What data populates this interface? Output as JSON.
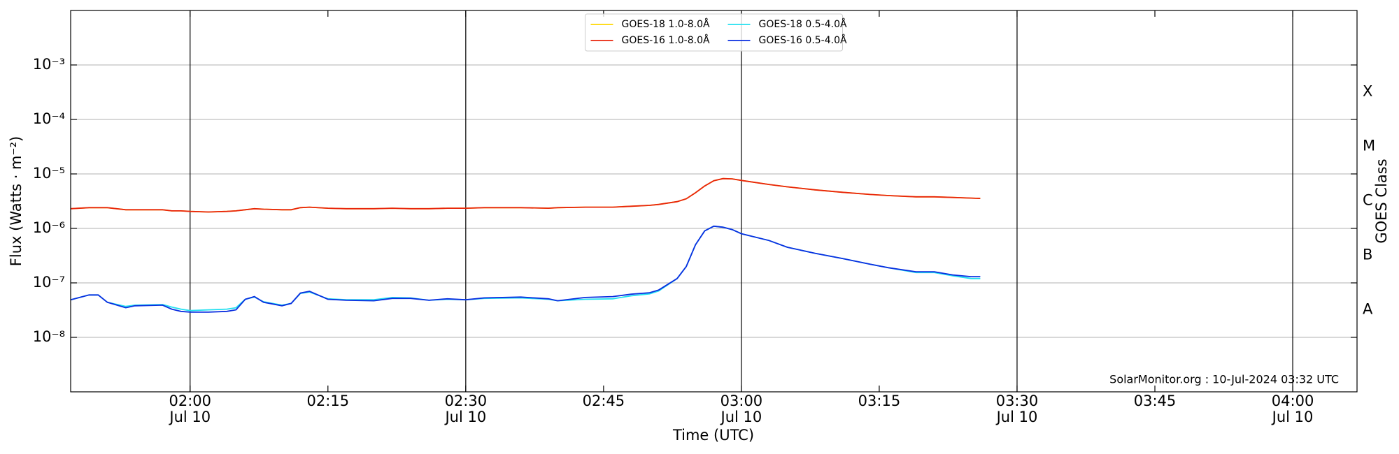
{
  "chart_data": {
    "type": "line",
    "xlabel": "Time (UTC)",
    "ylabel": "Flux (Watts · m⁻²)",
    "y2label": "GOES Class",
    "annotation": "SolarMonitor.org : 10-Jul-2024 03:32 UTC",
    "log": true,
    "grid": true,
    "legend": "upper center",
    "xlim": [
      "01:47",
      "04:07"
    ],
    "xticks": [
      {
        "value": "02:00",
        "label": [
          "02:00",
          "Jul 10"
        ]
      },
      "02:15",
      {
        "value": "02:30",
        "label": [
          "02:30",
          "Jul 10"
        ]
      },
      "02:45",
      {
        "value": "03:00",
        "label": [
          "03:00",
          "Jul 10"
        ]
      },
      "03:15",
      {
        "value": "03:30",
        "label": [
          "03:30",
          "Jul 10"
        ]
      },
      "03:45",
      {
        "value": "04:00",
        "label": [
          "04:00",
          "Jul 10"
        ]
      }
    ],
    "ylim": [
      1e-09,
      0.01
    ],
    "yticks": [
      {
        "value": 1e-08,
        "label": "10⁻⁸"
      },
      {
        "value": 1e-07,
        "label": "10⁻⁷"
      },
      {
        "value": 1e-06,
        "label": "10⁻⁶"
      },
      {
        "value": 1e-05,
        "label": "10⁻⁵"
      },
      {
        "value": 0.0001,
        "label": "10⁻⁴"
      },
      {
        "value": 0.001,
        "label": "10⁻³"
      }
    ],
    "y2lim": [
      1e-09,
      0.01
    ],
    "y2ticks": [
      {
        "value": 3.2e-08,
        "label": "A"
      },
      {
        "value": 3.2e-07,
        "label": "B"
      },
      {
        "value": 3.2e-06,
        "label": "C"
      },
      {
        "value": 3.2e-05,
        "label": "M"
      },
      {
        "value": 0.00032,
        "label": "X"
      }
    ],
    "x": [
      "01:47",
      "01:49",
      "01:50",
      "01:51",
      "01:53",
      "01:54",
      "01:57",
      "01:58",
      "01:59",
      "02:00",
      "02:02",
      "02:04",
      "02:05",
      "02:06",
      "02:07",
      "02:08",
      "02:10",
      "02:11",
      "02:12",
      "02:13",
      "02:15",
      "02:17",
      "02:20",
      "02:22",
      "02:24",
      "02:26",
      "02:28",
      "02:30",
      "02:32",
      "02:36",
      "02:39",
      "02:40",
      "02:43",
      "02:46",
      "02:48",
      "02:50",
      "02:51",
      "02:53",
      "02:54",
      "02:55",
      "02:56",
      "02:57",
      "02:58",
      "02:59",
      "03:00",
      "03:03",
      "03:05",
      "03:08",
      "03:11",
      "03:14",
      "03:16",
      "03:19",
      "03:21",
      "03:23",
      "03:25",
      "03:26"
    ],
    "series": [
      {
        "name": "GOES-18 1.0-8.0Å",
        "color": "#ffd700",
        "values": [
          2.3e-06,
          2.4e-06,
          2.4e-06,
          2.4e-06,
          2.2e-06,
          2.2e-06,
          2.2e-06,
          2.1e-06,
          2.1e-06,
          2.05e-06,
          2e-06,
          2.05e-06,
          2.1e-06,
          2.2e-06,
          2.3e-06,
          2.25e-06,
          2.2e-06,
          2.2e-06,
          2.4e-06,
          2.45e-06,
          2.35e-06,
          2.3e-06,
          2.3e-06,
          2.35e-06,
          2.3e-06,
          2.3e-06,
          2.35e-06,
          2.35e-06,
          2.4e-06,
          2.4e-06,
          2.35e-06,
          2.4e-06,
          2.45e-06,
          2.45e-06,
          2.55e-06,
          2.65e-06,
          2.75e-06,
          3.1e-06,
          3.5e-06,
          4.5e-06,
          6e-06,
          7.5e-06,
          8.2e-06,
          8.1e-06,
          7.6e-06,
          6.4e-06,
          5.8e-06,
          5.1e-06,
          4.6e-06,
          4.2e-06,
          4e-06,
          3.8e-06,
          3.8e-06,
          3.7e-06,
          3.6e-06,
          3.55e-06
        ]
      },
      {
        "name": "GOES-16 1.0-8.0Å",
        "color": "#e8240c",
        "values": [
          2.3e-06,
          2.4e-06,
          2.4e-06,
          2.4e-06,
          2.2e-06,
          2.2e-06,
          2.2e-06,
          2.1e-06,
          2.1e-06,
          2.05e-06,
          2e-06,
          2.05e-06,
          2.1e-06,
          2.2e-06,
          2.3e-06,
          2.25e-06,
          2.2e-06,
          2.2e-06,
          2.4e-06,
          2.45e-06,
          2.35e-06,
          2.3e-06,
          2.3e-06,
          2.35e-06,
          2.3e-06,
          2.3e-06,
          2.35e-06,
          2.35e-06,
          2.4e-06,
          2.4e-06,
          2.35e-06,
          2.4e-06,
          2.45e-06,
          2.45e-06,
          2.55e-06,
          2.65e-06,
          2.75e-06,
          3.1e-06,
          3.5e-06,
          4.5e-06,
          6e-06,
          7.5e-06,
          8.2e-06,
          8.1e-06,
          7.6e-06,
          6.4e-06,
          5.8e-06,
          5.1e-06,
          4.6e-06,
          4.2e-06,
          4e-06,
          3.8e-06,
          3.8e-06,
          3.7e-06,
          3.6e-06,
          3.55e-06
        ]
      },
      {
        "name": "GOES-18 0.5-4.0Å",
        "color": "#22e0f0",
        "values": [
          4.9e-08,
          6e-08,
          6e-08,
          4.4e-08,
          3.7e-08,
          3.9e-08,
          4e-08,
          3.6e-08,
          3.3e-08,
          3.1e-08,
          3.2e-08,
          3.3e-08,
          3.5e-08,
          5e-08,
          5.5e-08,
          4.5e-08,
          3.9e-08,
          4.2e-08,
          6.4e-08,
          6.8e-08,
          5.1e-08,
          4.9e-08,
          4.9e-08,
          5.4e-08,
          5.3e-08,
          4.8e-08,
          5e-08,
          4.9e-08,
          5.2e-08,
          5.3e-08,
          5e-08,
          4.7e-08,
          5e-08,
          5.1e-08,
          5.8e-08,
          6.3e-08,
          7.1e-08,
          1.2e-07,
          2e-07,
          5e-07,
          9e-07,
          1.1e-06,
          1.05e-06,
          9.5e-07,
          8e-07,
          6e-07,
          4.5e-07,
          3.5e-07,
          2.8e-07,
          2.2e-07,
          1.9e-07,
          1.55e-07,
          1.55e-07,
          1.35e-07,
          1.2e-07,
          1.2e-07
        ]
      },
      {
        "name": "GOES-16 0.5-4.0Å",
        "color": "#0a2ee0",
        "values": [
          4.9e-08,
          6e-08,
          6e-08,
          4.4e-08,
          3.5e-08,
          3.8e-08,
          3.9e-08,
          3.3e-08,
          3e-08,
          2.9e-08,
          2.9e-08,
          3e-08,
          3.2e-08,
          5e-08,
          5.6e-08,
          4.4e-08,
          3.8e-08,
          4.2e-08,
          6.5e-08,
          7e-08,
          5e-08,
          4.8e-08,
          4.7e-08,
          5.2e-08,
          5.2e-08,
          4.8e-08,
          5.1e-08,
          4.9e-08,
          5.3e-08,
          5.5e-08,
          5.1e-08,
          4.7e-08,
          5.4e-08,
          5.6e-08,
          6.2e-08,
          6.6e-08,
          7.4e-08,
          1.2e-07,
          2e-07,
          5e-07,
          9e-07,
          1.1e-06,
          1.05e-06,
          9.5e-07,
          8e-07,
          6e-07,
          4.5e-07,
          3.5e-07,
          2.8e-07,
          2.2e-07,
          1.9e-07,
          1.6e-07,
          1.6e-07,
          1.4e-07,
          1.3e-07,
          1.3e-07
        ]
      }
    ]
  }
}
